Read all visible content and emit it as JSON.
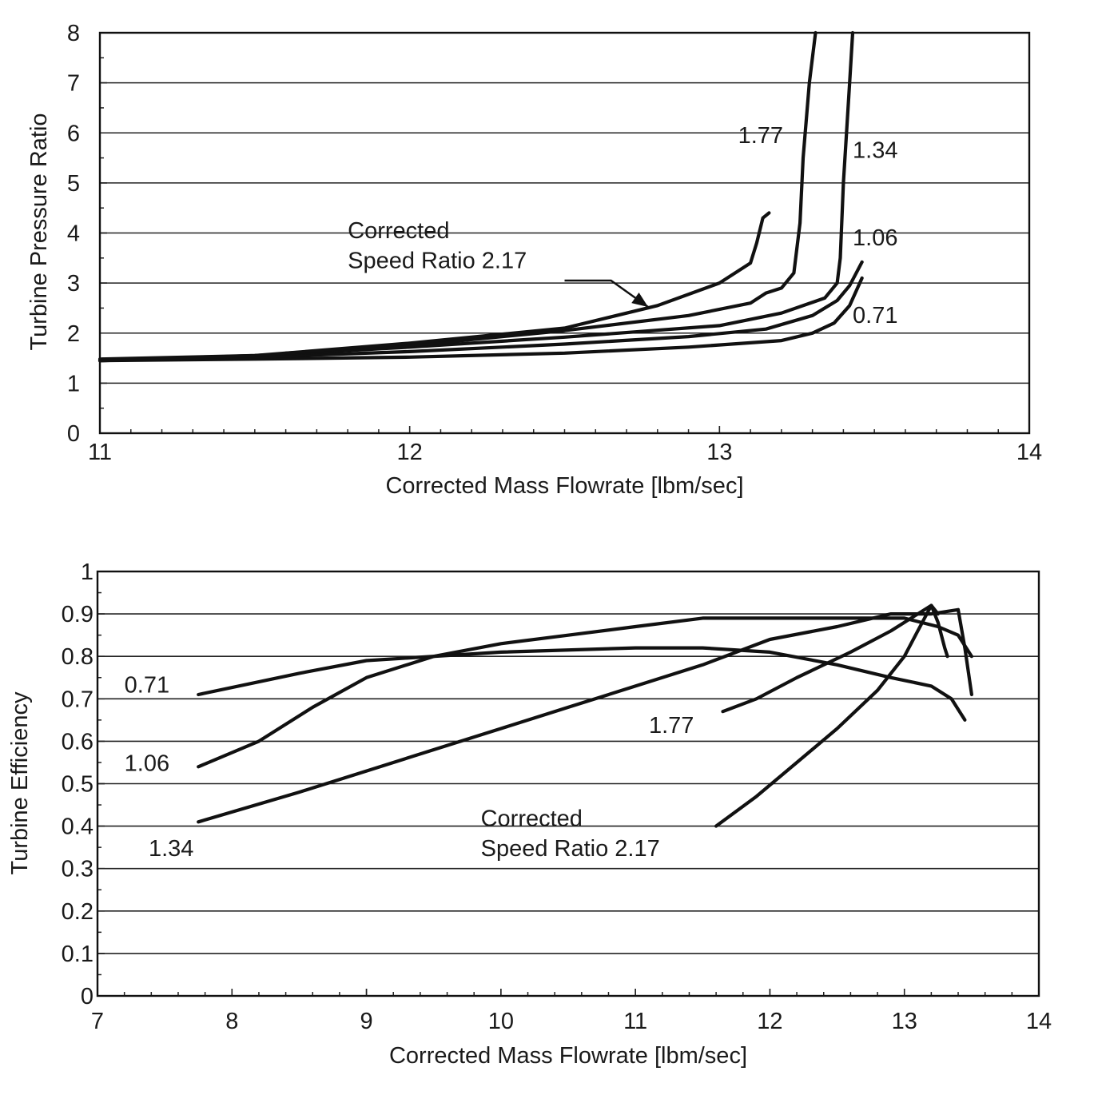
{
  "chart_data": [
    {
      "type": "line",
      "xlabel": "Corrected Mass Flowrate [lbm/sec]",
      "ylabel": "Turbine Pressure Ratio",
      "xlim": [
        11,
        14
      ],
      "ylim": [
        0,
        8
      ],
      "x_ticks": [
        "11",
        "12",
        "13",
        "14"
      ],
      "y_ticks": [
        "0",
        "1",
        "2",
        "3",
        "4",
        "5",
        "6",
        "7",
        "8"
      ],
      "grid": "horizontal",
      "series": [
        {
          "name": "0.71",
          "points": [
            [
              11.0,
              1.45
            ],
            [
              11.5,
              1.48
            ],
            [
              12.0,
              1.52
            ],
            [
              12.5,
              1.6
            ],
            [
              12.9,
              1.72
            ],
            [
              13.2,
              1.85
            ],
            [
              13.3,
              2.0
            ],
            [
              13.37,
              2.2
            ],
            [
              13.42,
              2.55
            ],
            [
              13.46,
              3.1
            ]
          ]
        },
        {
          "name": "1.06",
          "points": [
            [
              11.0,
              1.45
            ],
            [
              11.5,
              1.52
            ],
            [
              12.0,
              1.63
            ],
            [
              12.5,
              1.78
            ],
            [
              12.9,
              1.93
            ],
            [
              13.15,
              2.08
            ],
            [
              13.3,
              2.35
            ],
            [
              13.38,
              2.65
            ],
            [
              13.42,
              2.95
            ],
            [
              13.46,
              3.42
            ]
          ]
        },
        {
          "name": "1.34",
          "points": [
            [
              11.0,
              1.48
            ],
            [
              11.5,
              1.55
            ],
            [
              12.0,
              1.72
            ],
            [
              12.5,
              1.92
            ],
            [
              13.0,
              2.15
            ],
            [
              13.2,
              2.4
            ],
            [
              13.34,
              2.7
            ],
            [
              13.38,
              3.0
            ],
            [
              13.39,
              3.5
            ],
            [
              13.4,
              5.0
            ],
            [
              13.42,
              7.0
            ],
            [
              13.43,
              8.0
            ]
          ]
        },
        {
          "name": "1.77",
          "points": [
            [
              11.6,
              1.6
            ],
            [
              12.0,
              1.75
            ],
            [
              12.5,
              2.05
            ],
            [
              12.9,
              2.35
            ],
            [
              13.1,
              2.6
            ],
            [
              13.15,
              2.8
            ],
            [
              13.2,
              2.9
            ],
            [
              13.24,
              3.2
            ],
            [
              13.26,
              4.2
            ],
            [
              13.27,
              5.5
            ],
            [
              13.29,
              7.0
            ],
            [
              13.31,
              8.0
            ]
          ]
        },
        {
          "name": "2.17",
          "points": [
            [
              11.0,
              1.45
            ],
            [
              11.5,
              1.55
            ],
            [
              12.0,
              1.8
            ],
            [
              12.5,
              2.1
            ],
            [
              12.8,
              2.55
            ],
            [
              13.0,
              3.0
            ],
            [
              13.1,
              3.4
            ],
            [
              13.12,
              3.8
            ],
            [
              13.14,
              4.3
            ],
            [
              13.16,
              4.4
            ]
          ]
        }
      ],
      "annotations": [
        {
          "text": "1.77",
          "x": 13.06,
          "y": 5.8
        },
        {
          "text": "1.34",
          "x": 13.43,
          "y": 5.5
        },
        {
          "text": "1.06",
          "x": 13.43,
          "y": 3.75
        },
        {
          "text": "0.71",
          "x": 13.43,
          "y": 2.2
        },
        {
          "text": "Corrected",
          "x": 11.8,
          "y": 3.9
        },
        {
          "text": "Speed Ratio 2.17",
          "x": 11.8,
          "y": 3.3
        }
      ]
    },
    {
      "type": "line",
      "xlabel": "Corrected Mass Flowrate [lbm/sec]",
      "ylabel": "Turbine Efficiency",
      "xlim": [
        7,
        14
      ],
      "ylim": [
        0,
        1
      ],
      "x_ticks": [
        "7",
        "8",
        "9",
        "10",
        "11",
        "12",
        "13",
        "14"
      ],
      "y_ticks": [
        "0",
        "0.1",
        "0.2",
        "0.3",
        "0.4",
        "0.5",
        "0.6",
        "0.7",
        "0.8",
        "0.9",
        "1"
      ],
      "grid": "horizontal",
      "series": [
        {
          "name": "0.71",
          "points": [
            [
              7.75,
              0.71
            ],
            [
              8.5,
              0.76
            ],
            [
              9.0,
              0.79
            ],
            [
              10.0,
              0.81
            ],
            [
              11.0,
              0.82
            ],
            [
              11.5,
              0.82
            ],
            [
              12.0,
              0.81
            ],
            [
              12.5,
              0.78
            ],
            [
              12.9,
              0.75
            ],
            [
              13.2,
              0.73
            ],
            [
              13.35,
              0.7
            ],
            [
              13.45,
              0.65
            ]
          ]
        },
        {
          "name": "1.06",
          "points": [
            [
              7.75,
              0.54
            ],
            [
              8.2,
              0.6
            ],
            [
              8.6,
              0.68
            ],
            [
              9.0,
              0.75
            ],
            [
              9.5,
              0.8
            ],
            [
              10.0,
              0.83
            ],
            [
              10.5,
              0.85
            ],
            [
              11.0,
              0.87
            ],
            [
              11.5,
              0.89
            ],
            [
              12.0,
              0.89
            ],
            [
              12.5,
              0.89
            ],
            [
              13.0,
              0.89
            ],
            [
              13.25,
              0.87
            ],
            [
              13.4,
              0.85
            ],
            [
              13.5,
              0.8
            ]
          ]
        },
        {
          "name": "1.34",
          "points": [
            [
              7.75,
              0.41
            ],
            [
              8.5,
              0.48
            ],
            [
              9.0,
              0.53
            ],
            [
              9.5,
              0.58
            ],
            [
              10.0,
              0.63
            ],
            [
              10.5,
              0.68
            ],
            [
              11.0,
              0.73
            ],
            [
              11.5,
              0.78
            ],
            [
              12.0,
              0.84
            ],
            [
              12.5,
              0.87
            ],
            [
              12.9,
              0.9
            ],
            [
              13.2,
              0.9
            ],
            [
              13.4,
              0.91
            ],
            [
              13.45,
              0.82
            ],
            [
              13.5,
              0.71
            ]
          ]
        },
        {
          "name": "1.77",
          "points": [
            [
              11.65,
              0.67
            ],
            [
              11.9,
              0.7
            ],
            [
              12.2,
              0.75
            ],
            [
              12.6,
              0.81
            ],
            [
              12.9,
              0.86
            ],
            [
              13.1,
              0.9
            ],
            [
              13.2,
              0.92
            ],
            [
              13.25,
              0.88
            ],
            [
              13.3,
              0.82
            ],
            [
              13.32,
              0.8
            ]
          ]
        },
        {
          "name": "2.17",
          "points": [
            [
              11.6,
              0.4
            ],
            [
              11.9,
              0.47
            ],
            [
              12.2,
              0.55
            ],
            [
              12.5,
              0.63
            ],
            [
              12.8,
              0.72
            ],
            [
              13.0,
              0.8
            ],
            [
              13.1,
              0.86
            ],
            [
              13.2,
              0.92
            ],
            [
              13.25,
              0.9
            ]
          ]
        }
      ],
      "annotations": [
        {
          "text": "0.71",
          "x": 7.2,
          "y": 0.715
        },
        {
          "text": "1.06",
          "x": 7.2,
          "y": 0.53
        },
        {
          "text": "1.34",
          "x": 7.38,
          "y": 0.33
        },
        {
          "text": "1.77",
          "x": 11.1,
          "y": 0.62
        },
        {
          "text": "Corrected",
          "x": 9.85,
          "y": 0.4
        },
        {
          "text": "Speed Ratio 2.17",
          "x": 9.85,
          "y": 0.33
        }
      ]
    }
  ]
}
